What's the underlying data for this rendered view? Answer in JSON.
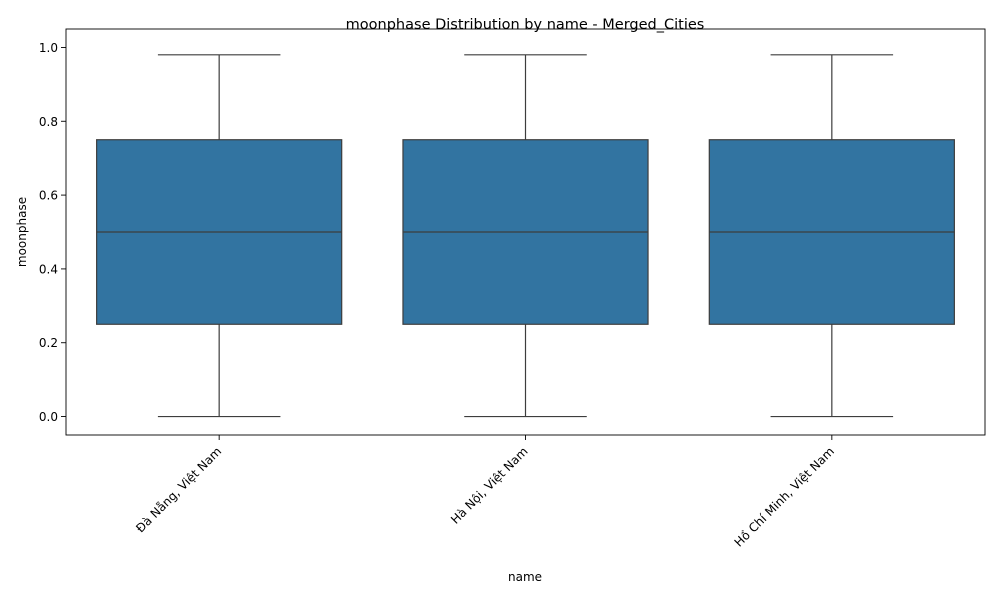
{
  "chart_data": {
    "type": "box",
    "title": "moonphase Distribution by name - Merged_Cities",
    "xlabel": "name",
    "ylabel": "moonphase",
    "ylim": [
      -0.05,
      1.05
    ],
    "yticks": [
      0.0,
      0.2,
      0.4,
      0.6,
      0.8,
      1.0
    ],
    "ytick_labels": [
      "0.0",
      "0.2",
      "0.4",
      "0.6",
      "0.8",
      "1.0"
    ],
    "categories": [
      "Đà Nẵng, Việt Nam",
      "Hà Nội, Việt Nam",
      "Hồ Chí Minh, Việt Nam"
    ],
    "boxes": [
      {
        "min": 0.0,
        "q1": 0.25,
        "median": 0.5,
        "q3": 0.75,
        "max": 0.98
      },
      {
        "min": 0.0,
        "q1": 0.25,
        "median": 0.5,
        "q3": 0.75,
        "max": 0.98
      },
      {
        "min": 0.0,
        "q1": 0.25,
        "median": 0.5,
        "q3": 0.75,
        "max": 0.98
      }
    ],
    "grid": false,
    "colors": {
      "box_fill": "#3274a1",
      "line": "#3d3d3d"
    }
  }
}
